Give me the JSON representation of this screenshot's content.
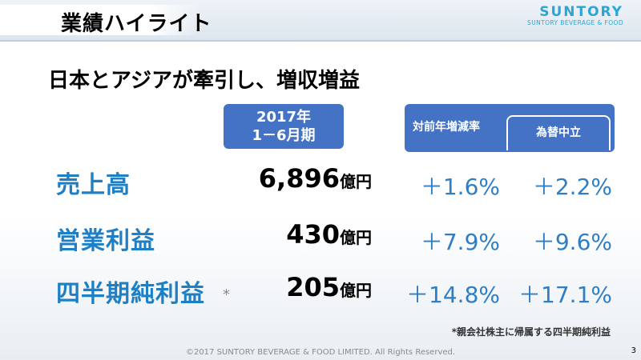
{
  "header": {
    "title": "業績ハイライト",
    "logo_main": "SUNTORY",
    "logo_sub": "SUNTORY BEVERAGE & FOOD"
  },
  "subtitle": "日本とアジアが牽引し、増収増益",
  "columns": {
    "period_line1": "2017年",
    "period_line2": "1－6月期",
    "yoy_label": "対前年増減率",
    "fx_label": "為替中立"
  },
  "rows": [
    {
      "label": "売上高",
      "value": "6,896",
      "unit": "億円",
      "yoy": "＋1.6%",
      "fx_neutral": "＋2.2%"
    },
    {
      "label": "営業利益",
      "value": "430",
      "unit": "億円",
      "yoy": "＋7.9%",
      "fx_neutral": "＋9.6%"
    },
    {
      "label": "四半期純利益",
      "value": "205",
      "unit": "億円",
      "yoy": "＋14.8%",
      "fx_neutral": "＋17.1%"
    }
  ],
  "asterisk": "*",
  "footnote": "*親会社株主に帰属する四半期純利益",
  "copyright": "©2017 SUNTORY BEVERAGE & FOOD LIMITED. All Rights Reserved.",
  "page_number": "3"
}
